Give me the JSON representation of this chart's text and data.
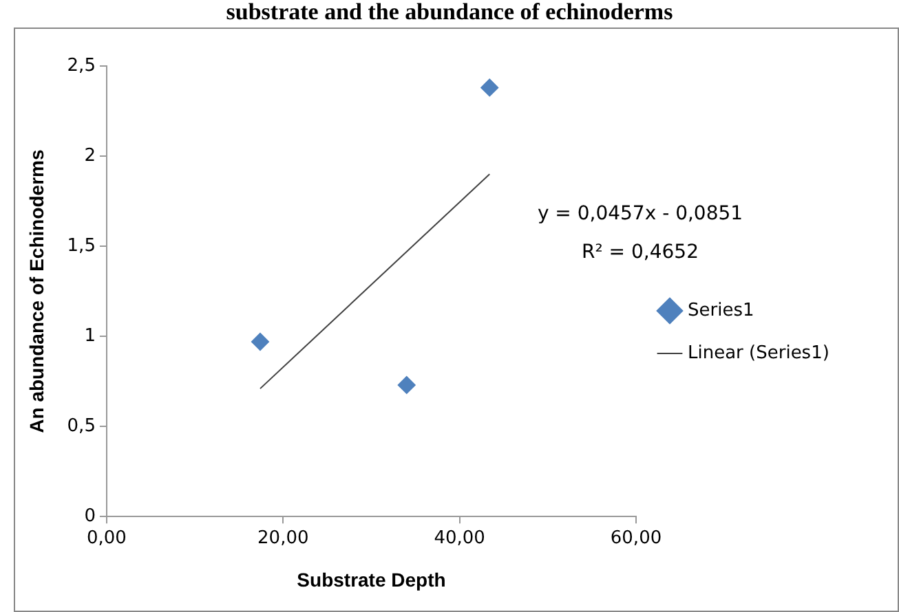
{
  "chart_data": {
    "type": "scatter",
    "title": "substrate and the abundance of echinoderms",
    "xlabel": "Substrate Depth",
    "ylabel": "An abundance of Echinoderms",
    "annotations": [
      "y = 0,0457x - 0,0851",
      "R² = 0,4652"
    ],
    "x": [
      17.4,
      34.0,
      43.4
    ],
    "series": [
      {
        "name": "Series1",
        "color": "#4f81bd",
        "values": [
          0.97,
          0.73,
          2.38
        ],
        "marker": "diamond"
      },
      {
        "name": "Linear (Series1)",
        "type": "line",
        "x": [
          17.4,
          43.4
        ],
        "values": [
          0.71,
          1.9
        ],
        "color": "#404040",
        "marker": "none"
      }
    ],
    "xlim": [
      0,
      60
    ],
    "xticks": [
      {
        "value": 0,
        "label": "0,00"
      },
      {
        "value": 20,
        "label": "20,00"
      },
      {
        "value": 40,
        "label": "40,00"
      },
      {
        "value": 60,
        "label": "60,00"
      }
    ],
    "ylim": [
      0,
      2.5
    ],
    "yticks": [
      0,
      {
        "value": 0.5,
        "label": "0,5"
      },
      1,
      {
        "value": 1.5,
        "label": "1,5"
      },
      2,
      {
        "value": 2.5,
        "label": "2,5"
      }
    ],
    "grid": false,
    "legend": "right"
  }
}
